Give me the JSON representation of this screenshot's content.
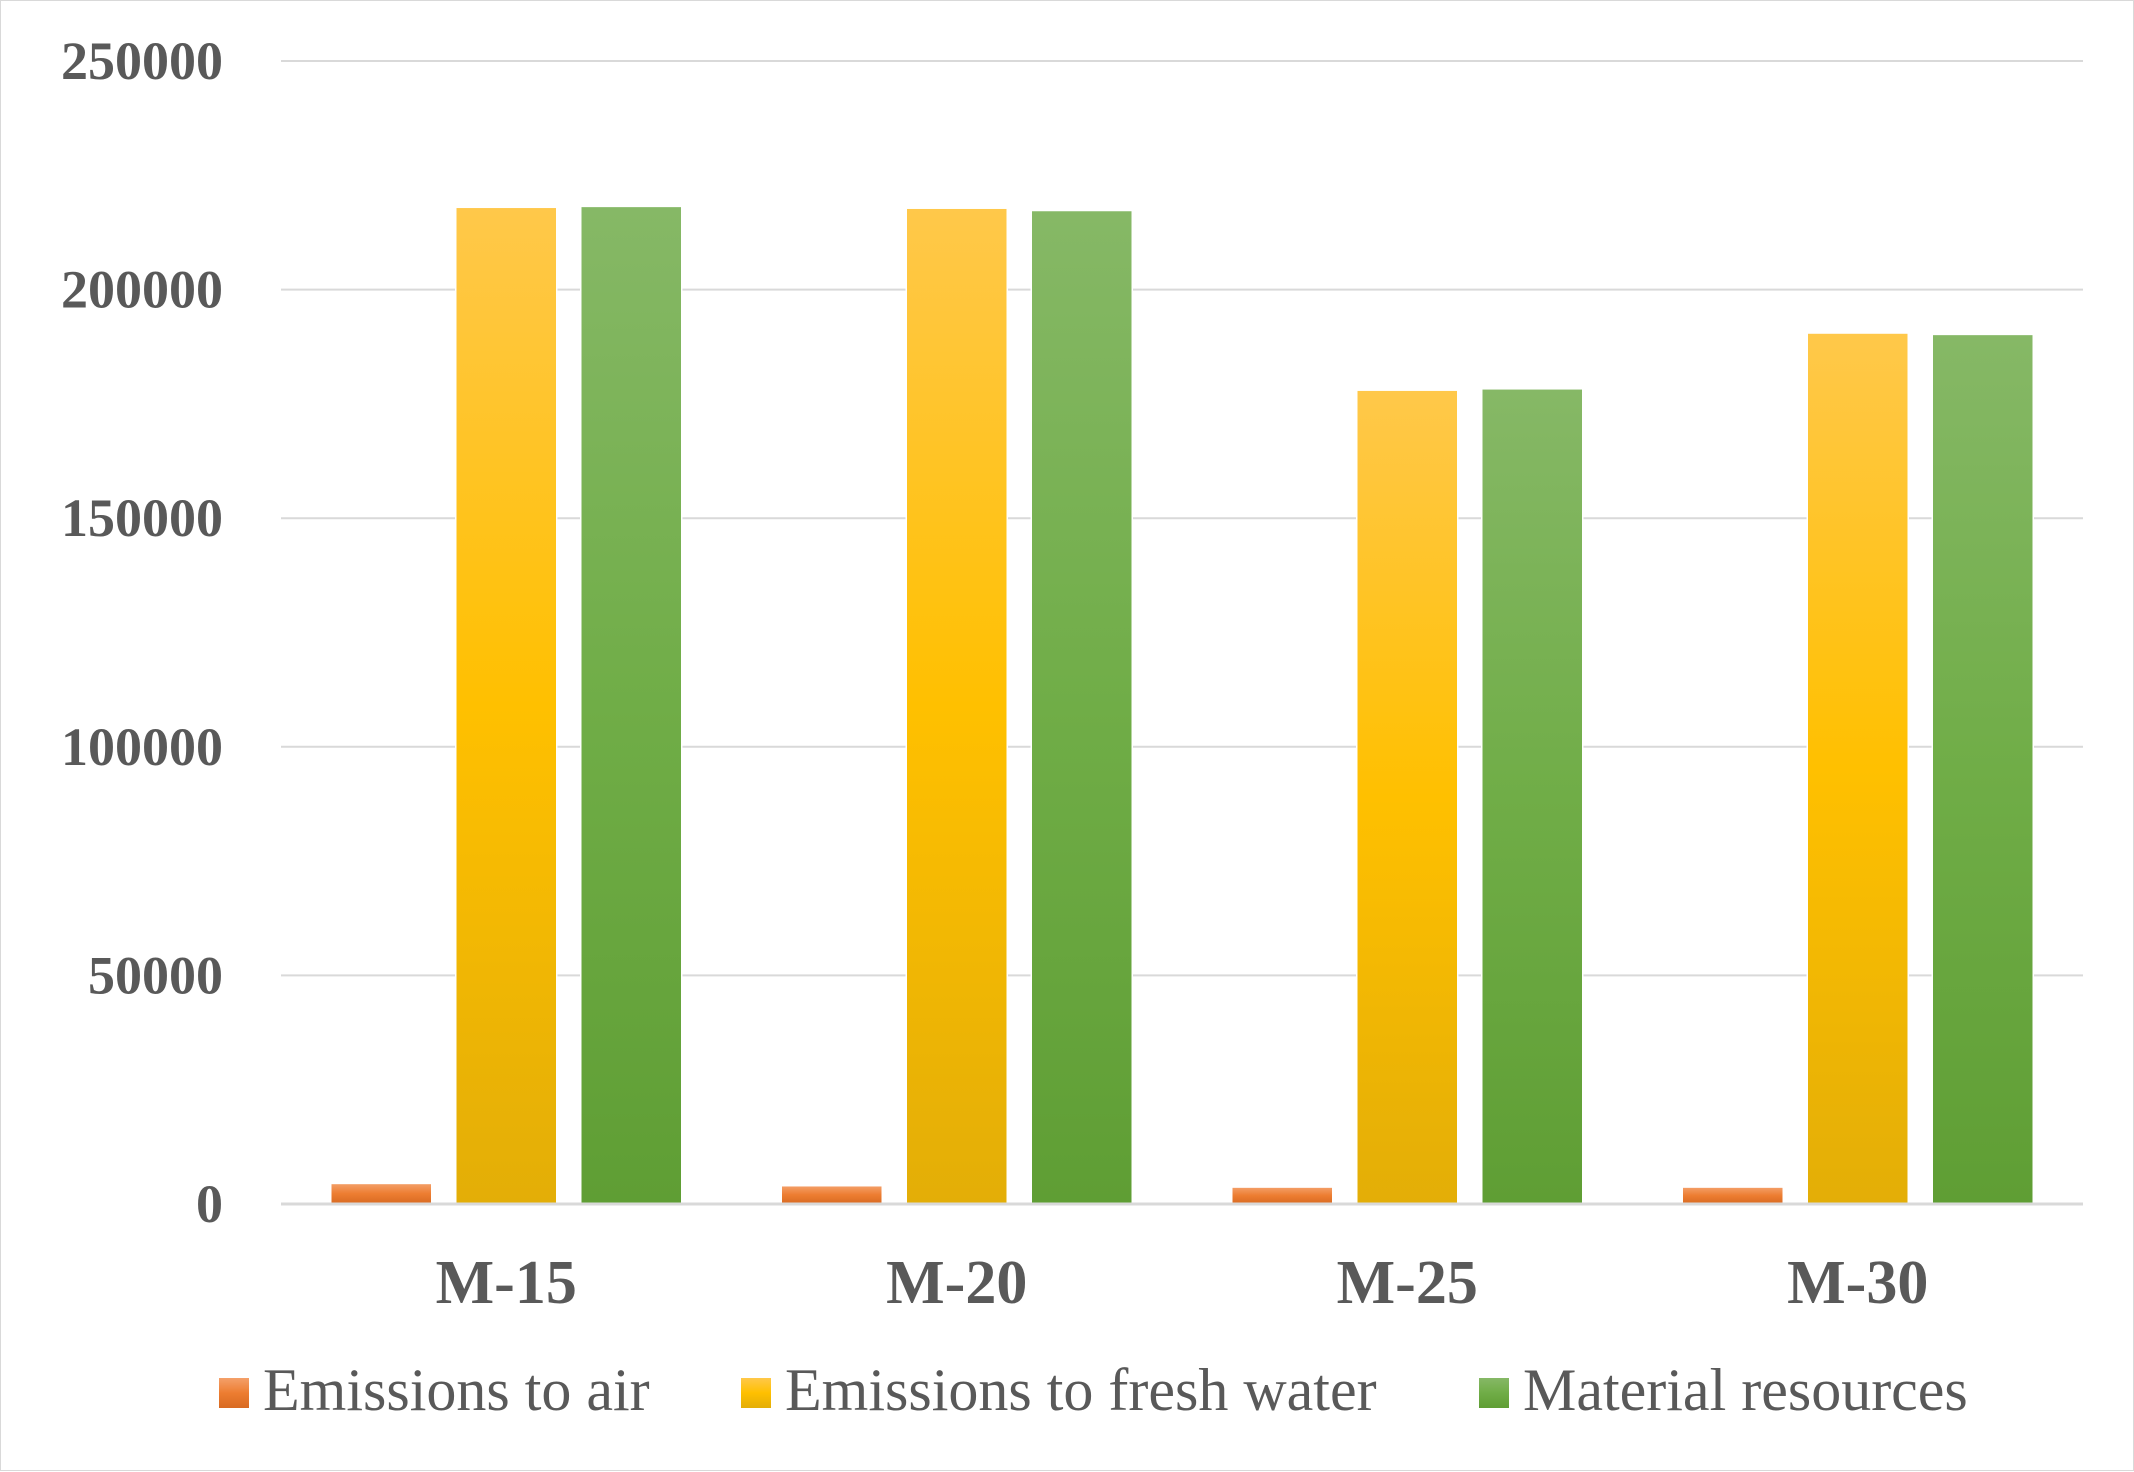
{
  "chart_data": {
    "type": "bar",
    "title": "",
    "xlabel": "",
    "ylabel": "",
    "categories": [
      "M-15",
      "M-20",
      "M-25",
      "M-30"
    ],
    "ylim": [
      0,
      250000
    ],
    "yticks": [
      0,
      50000,
      100000,
      150000,
      200000,
      250000
    ],
    "ytick_labels": [
      "0",
      "50000",
      "100000",
      "150000",
      "200000",
      "250000"
    ],
    "grid": true,
    "legend_position": "bottom",
    "series": [
      {
        "name": "Emissions to air",
        "color": "#ED7D31",
        "values": [
          4500,
          4000,
          3700,
          3700
        ]
      },
      {
        "name": "Emissions to fresh water",
        "color": "#FFC000",
        "values": [
          218000,
          217800,
          178000,
          190500
        ]
      },
      {
        "name": "Material resources",
        "color": "#70AD47",
        "values": [
          218200,
          217300,
          178300,
          190200
        ]
      }
    ]
  }
}
